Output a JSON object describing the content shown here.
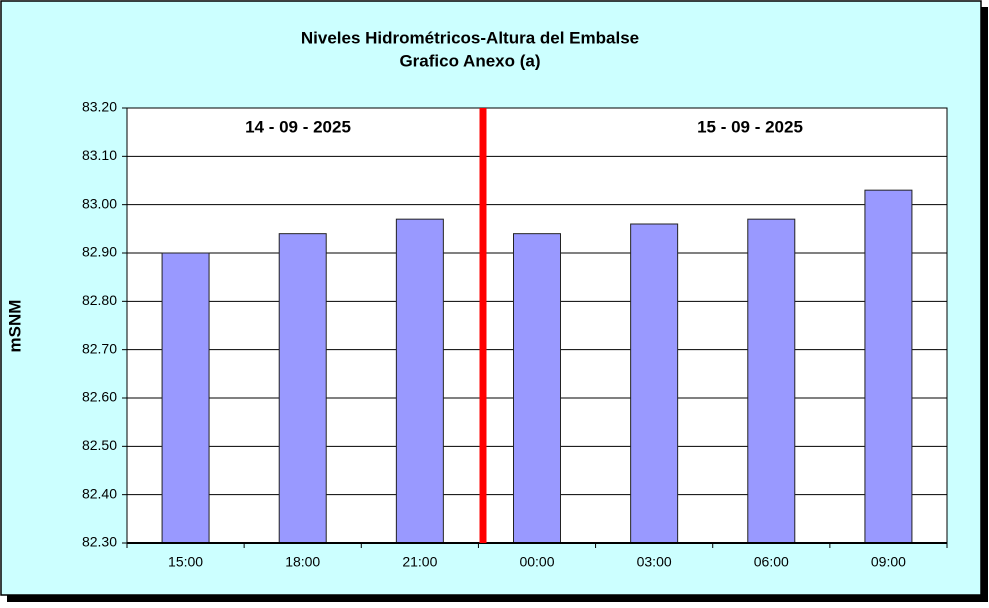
{
  "chart_data": {
    "type": "bar",
    "title": "Niveles Hidrométricos-Altura del Embalse",
    "subtitle": "Grafico Anexo (a)",
    "y_label": "mSNM",
    "annotations": [
      "14 - 09 - 2025",
      "15 - 09 - 2025"
    ],
    "categories": [
      "15:00",
      "18:00",
      "21:00",
      "00:00",
      "03:00",
      "06:00",
      "09:00"
    ],
    "values": [
      82.9,
      82.94,
      82.97,
      82.94,
      82.96,
      82.97,
      83.03
    ],
    "color": "#9999ff",
    "ylim": [
      82.3,
      83.2
    ],
    "yticks": [
      {
        "value": 82.3,
        "label": "82.30"
      },
      {
        "value": 82.4,
        "label": "82.40"
      },
      {
        "value": 82.5,
        "label": "82.50"
      },
      {
        "value": 82.6,
        "label": "82.60"
      },
      {
        "value": 82.7,
        "label": "82.70"
      },
      {
        "value": 82.8,
        "label": "82.80"
      },
      {
        "value": 82.9,
        "label": "82.90"
      },
      {
        "value": 83.0,
        "label": "83.00"
      },
      {
        "value": 83.1,
        "label": "83.10"
      },
      {
        "value": 83.2,
        "label": "83.20"
      }
    ],
    "grid": true
  }
}
